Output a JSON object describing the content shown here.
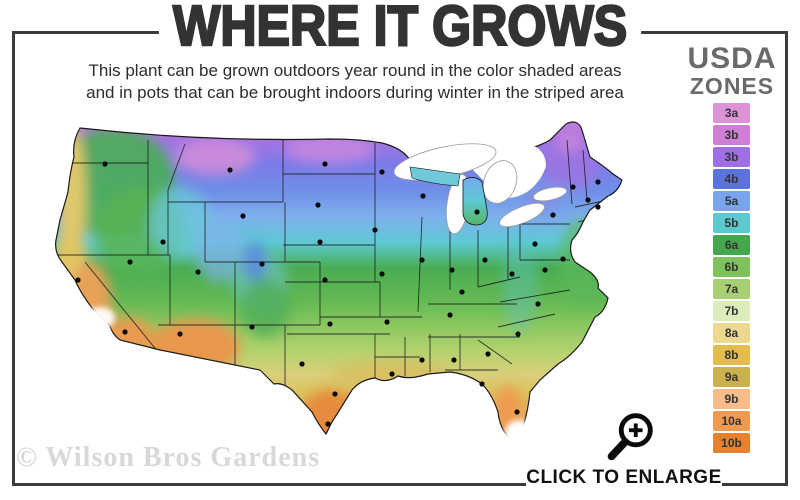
{
  "header": {
    "title": "WHERE IT GROWS",
    "subtitle_line1": "This plant can be grown outdoors year round in the color shaded areas",
    "subtitle_line2": "and in pots that can be brought indoors during winter in the striped area"
  },
  "legend": {
    "title_line1": "USDA",
    "title_line2": "ZONES",
    "zones": [
      {
        "label": "3a",
        "color": "#de92d8"
      },
      {
        "label": "3b",
        "color": "#d07fd6"
      },
      {
        "label": "3b",
        "color": "#9e6fe5"
      },
      {
        "label": "4b",
        "color": "#5a74db"
      },
      {
        "label": "5a",
        "color": "#78a4ee"
      },
      {
        "label": "5b",
        "color": "#5dc9cf"
      },
      {
        "label": "6a",
        "color": "#44a64d"
      },
      {
        "label": "6b",
        "color": "#7ec25e"
      },
      {
        "label": "7a",
        "color": "#a8d073"
      },
      {
        "label": "7b",
        "color": "#dcedbb"
      },
      {
        "label": "8a",
        "color": "#ecd98e"
      },
      {
        "label": "8b",
        "color": "#e3bc4d"
      },
      {
        "label": "9a",
        "color": "#cbb14d"
      },
      {
        "label": "9b",
        "color": "#f6bd8b"
      },
      {
        "label": "10a",
        "color": "#f09a50"
      },
      {
        "label": "10b",
        "color": "#e6822f"
      }
    ]
  },
  "watermark": "© Wilson Bros Gardens",
  "enlarge": {
    "label": "CLICK TO ENLARGE",
    "icon": "magnifier-plus-icon"
  },
  "map": {
    "description": "USDA plant hardiness zone map of the continental United States, color shaded by zone with black city marker dots",
    "city_dots": [
      [
        75,
        52
      ],
      [
        133,
        130
      ],
      [
        200,
        58
      ],
      [
        295,
        52
      ],
      [
        352,
        60
      ],
      [
        393,
        84
      ],
      [
        288,
        93
      ],
      [
        213,
        104
      ],
      [
        447,
        100
      ],
      [
        523,
        103
      ],
      [
        543,
        75
      ],
      [
        558,
        88
      ],
      [
        568,
        70
      ],
      [
        568,
        95
      ],
      [
        100,
        150
      ],
      [
        48,
        168
      ],
      [
        95,
        220
      ],
      [
        168,
        160
      ],
      [
        232,
        152
      ],
      [
        290,
        130
      ],
      [
        345,
        118
      ],
      [
        392,
        148
      ],
      [
        422,
        158
      ],
      [
        455,
        148
      ],
      [
        505,
        132
      ],
      [
        533,
        147
      ],
      [
        295,
        168
      ],
      [
        352,
        162
      ],
      [
        432,
        180
      ],
      [
        482,
        162
      ],
      [
        515,
        158
      ],
      [
        150,
        222
      ],
      [
        222,
        215
      ],
      [
        300,
        212
      ],
      [
        357,
        210
      ],
      [
        420,
        203
      ],
      [
        508,
        192
      ],
      [
        488,
        222
      ],
      [
        458,
        242
      ],
      [
        424,
        248
      ],
      [
        392,
        248
      ],
      [
        362,
        262
      ],
      [
        272,
        252
      ],
      [
        305,
        282
      ],
      [
        298,
        312
      ],
      [
        452,
        272
      ],
      [
        487,
        300
      ]
    ]
  }
}
